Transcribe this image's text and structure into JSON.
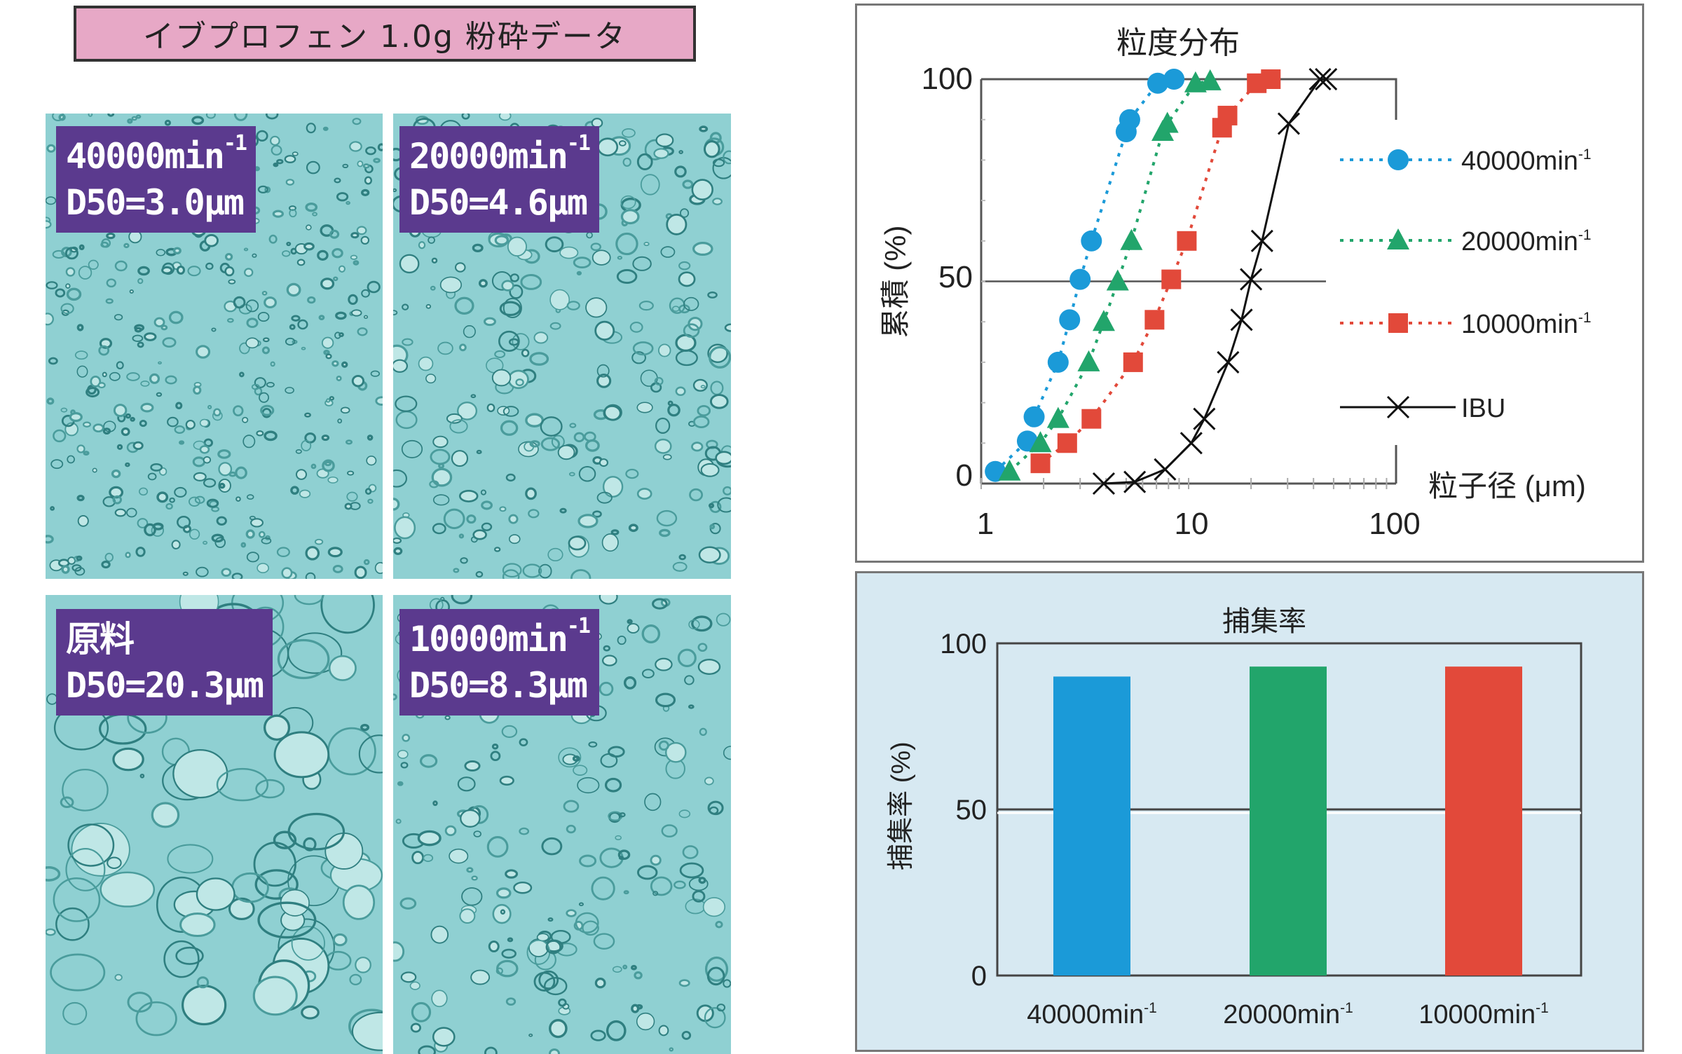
{
  "header": {
    "title": "イブプロフェン 1.0g 粉砕データ"
  },
  "photos": [
    {
      "speed": "40000min",
      "exp": "-1",
      "d50": "D50=3.0μm"
    },
    {
      "speed": "20000min",
      "exp": "-1",
      "d50": "D50=4.6μm"
    },
    {
      "speed": "原料",
      "exp": "",
      "d50": "D50=20.3μm"
    },
    {
      "speed": "10000min",
      "exp": "-1",
      "d50": "D50=8.3μm"
    }
  ],
  "colors": {
    "blue": "#1b9ad8",
    "green": "#22a56b",
    "red": "#e2493a",
    "black": "#111111",
    "photo": "#8fd0d2",
    "label": "#5b3a8e",
    "title_box": "#e7a8c6",
    "bar_panel": "#d7e9f2"
  },
  "chart_data": [
    {
      "type": "line",
      "title": "粒度分布",
      "xlabel": "粒子径 (μm)",
      "ylabel": "累積 (%)",
      "xscale": "log",
      "xlim": [
        1,
        100
      ],
      "ylim": [
        0,
        100
      ],
      "xticks": [
        "1",
        "10",
        "100"
      ],
      "yticks": [
        "0",
        "50",
        "100"
      ],
      "gridline_y": 50,
      "legend_placement": "right",
      "series": [
        {
          "name": "40000min",
          "exp": "-1",
          "marker": "circle",
          "line": "dotted",
          "color": "#1b9ad8",
          "x": [
            1.17,
            1.67,
            1.8,
            2.35,
            2.67,
            3.0,
            3.4,
            5.0,
            5.2,
            7.1,
            8.5
          ],
          "y": [
            3,
            10.5,
            16.5,
            30,
            40.5,
            50.5,
            60,
            87,
            90,
            99,
            100
          ]
        },
        {
          "name": "20000min",
          "exp": "-1",
          "marker": "triangle",
          "line": "dotted",
          "color": "#22a56b",
          "x": [
            1.37,
            1.93,
            2.35,
            3.3,
            3.9,
            4.55,
            5.3,
            7.5,
            7.9,
            10.8,
            12.7
          ],
          "y": [
            3,
            10,
            16,
            30,
            40,
            50,
            60,
            87,
            89,
            99,
            99.5
          ]
        },
        {
          "name": "10000min",
          "exp": "-1",
          "marker": "square",
          "line": "dotted",
          "color": "#e2493a",
          "x": [
            1.93,
            2.6,
            3.4,
            5.4,
            6.85,
            8.25,
            9.8,
            14.5,
            15.4,
            21.3,
            24.9
          ],
          "y": [
            5,
            10,
            16,
            30,
            40.5,
            50.5,
            60,
            88,
            91,
            99,
            100
          ]
        },
        {
          "name": "IBU",
          "exp": "",
          "marker": "x",
          "line": "solid",
          "color": "#111111",
          "x": [
            3.9,
            5.5,
            7.7,
            10.3,
            11.9,
            15.5,
            18.0,
            20.0,
            22.6,
            30.4,
            43,
            46
          ],
          "y": [
            0,
            0.4,
            3.5,
            10,
            16,
            30,
            40.5,
            50.5,
            60,
            89,
            100,
            100
          ]
        }
      ]
    },
    {
      "type": "bar",
      "title": "捕集率",
      "ylabel": "捕集率 (%)",
      "ylim": [
        0,
        100
      ],
      "yticks": [
        "0",
        "50",
        "100"
      ],
      "gridline_y": 50,
      "categories": [
        {
          "name": "40000min",
          "exp": "-1"
        },
        {
          "name": "20000min",
          "exp": "-1"
        },
        {
          "name": "10000min",
          "exp": "-1"
        }
      ],
      "values": [
        90,
        93,
        93
      ],
      "bar_colors": [
        "#1b9ad8",
        "#22a56b",
        "#e2493a"
      ]
    }
  ]
}
